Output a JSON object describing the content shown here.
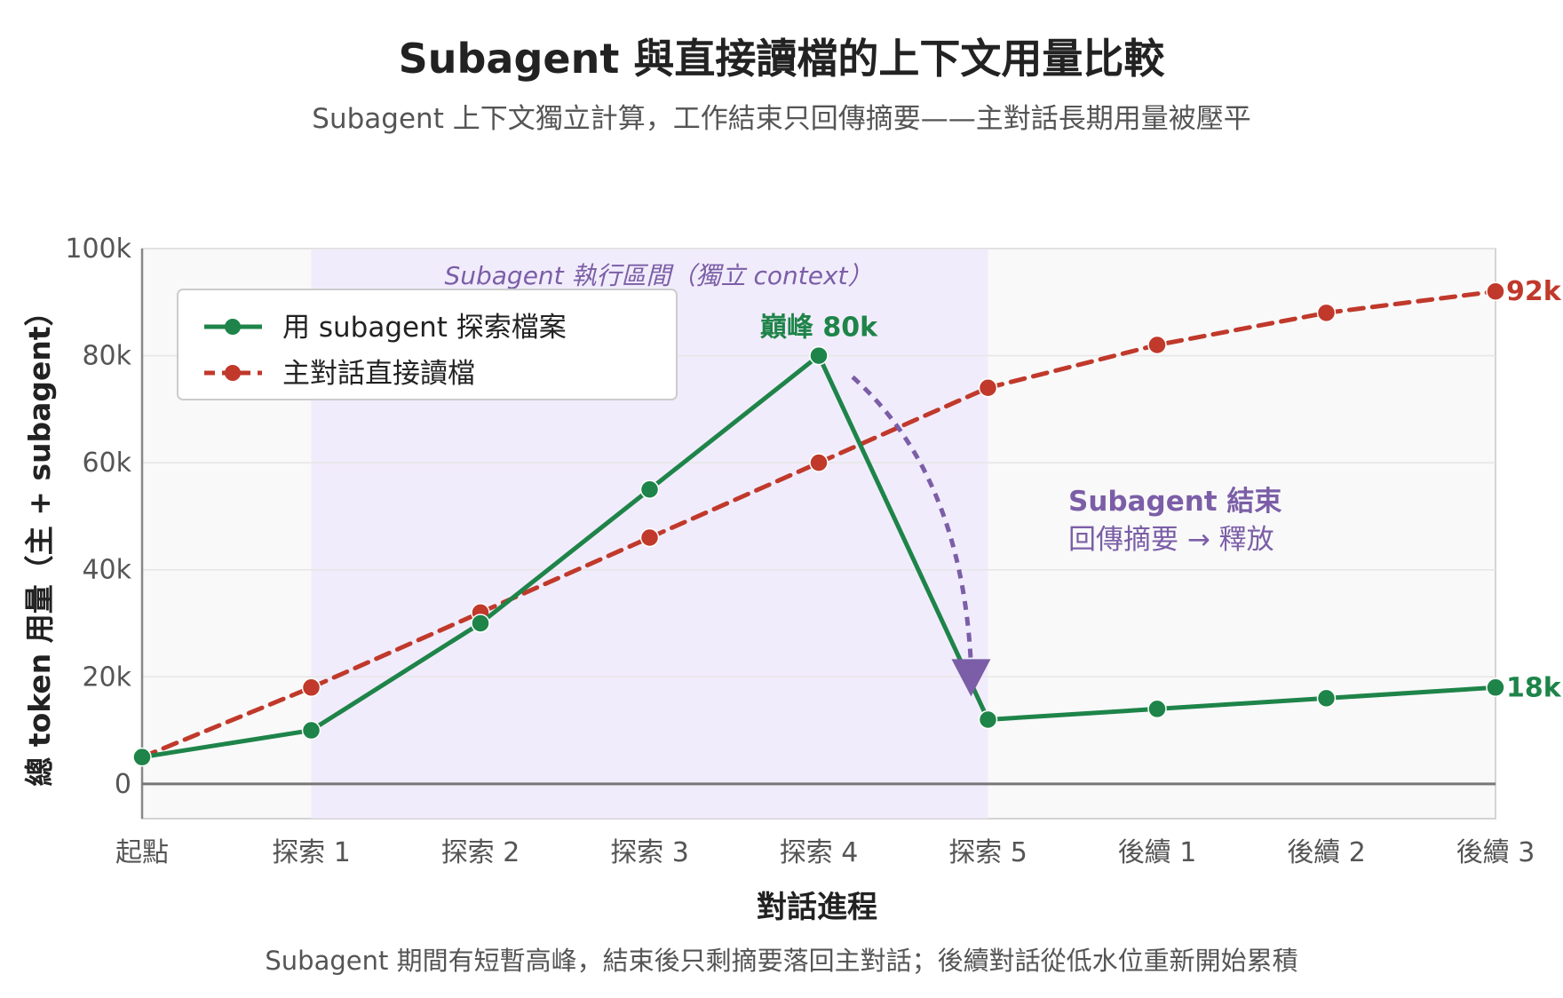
{
  "chart_data": {
    "type": "line",
    "title": "Subagent 與直接讀檔的上下文用量比較",
    "subtitle": "Subagent 上下文獨立計算，工作結束只回傳摘要——主對話長期用量被壓平",
    "xlabel": "對話進程",
    "ylabel": "總 token 用量（主 + subagent）",
    "footnote": "Subagent 期間有短暫高峰，結束後只剩摘要落回主對話；後續對話從低水位重新開始累積",
    "categories": [
      "起點",
      "探索 1",
      "探索 2",
      "探索 3",
      "探索 4",
      "探索 5",
      "後續 1",
      "後續 2",
      "後續 3"
    ],
    "y_ticks": [
      {
        "value": 0,
        "label": "0"
      },
      {
        "value": 20000,
        "label": "20k"
      },
      {
        "value": 40000,
        "label": "40k"
      },
      {
        "value": 60000,
        "label": "60k"
      },
      {
        "value": 80000,
        "label": "80k"
      },
      {
        "value": 100000,
        "label": "100k"
      }
    ],
    "ylim": [
      -6500,
      100000
    ],
    "grid": true,
    "legend_position": "top-left",
    "series": [
      {
        "name": "用 subagent 探索檔案",
        "color": "#1e8449",
        "style": "solid",
        "values": [
          5000,
          10000,
          30000,
          55000,
          80000,
          12000,
          14000,
          16000,
          18000
        ],
        "end_label": "18k"
      },
      {
        "name": "主對話直接讀檔",
        "color": "#c0392b",
        "style": "dashed",
        "values": [
          5000,
          18000,
          32000,
          46000,
          60000,
          74000,
          82000,
          88000,
          92000
        ],
        "end_label": "92k"
      }
    ],
    "shaded_region": {
      "from_index": 1,
      "to_index": 5,
      "label": "Subagent 執行區間（獨立 context）",
      "color": "#ede7fb"
    },
    "annotations": {
      "peak": {
        "text": "巔峰 80k",
        "index": 4,
        "value": 80000,
        "color": "#1e8449"
      },
      "arrow": {
        "from_index": 4.2,
        "from_value": 76000,
        "to_index": 4.9,
        "to_value": 17000,
        "color": "#7b5ea7"
      },
      "release_title": "Subagent 結束",
      "release_text": "回傳摘要 → 釋放",
      "release_color": "#7b5ea7"
    }
  }
}
